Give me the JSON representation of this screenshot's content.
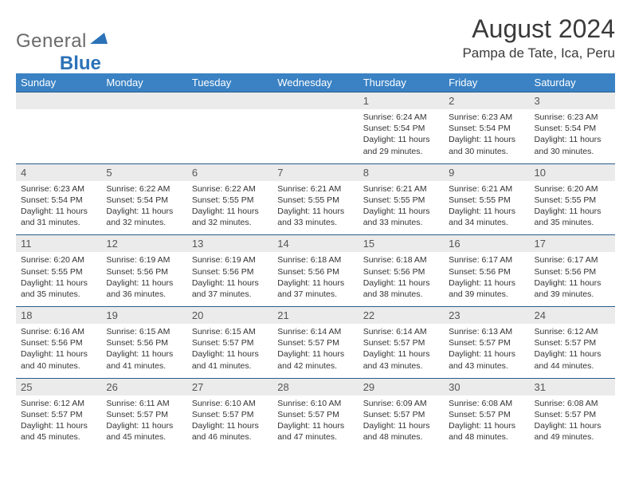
{
  "logo": {
    "text1": "General",
    "text2": "Blue"
  },
  "title": "August 2024",
  "location": "Pampa de Tate, Ica, Peru",
  "colors": {
    "header_bg": "#3a82c4",
    "header_text": "#ffffff",
    "daynum_bg": "#ebebeb",
    "row_divider": "#2a5d8a",
    "logo_gray": "#6a6a6a",
    "logo_blue": "#2c72b8"
  },
  "day_headers": [
    "Sunday",
    "Monday",
    "Tuesday",
    "Wednesday",
    "Thursday",
    "Friday",
    "Saturday"
  ],
  "weeks": [
    {
      "nums": [
        "",
        "",
        "",
        "",
        "1",
        "2",
        "3"
      ],
      "cells": [
        "",
        "",
        "",
        "",
        "Sunrise: 6:24 AM\nSunset: 5:54 PM\nDaylight: 11 hours and 29 minutes.",
        "Sunrise: 6:23 AM\nSunset: 5:54 PM\nDaylight: 11 hours and 30 minutes.",
        "Sunrise: 6:23 AM\nSunset: 5:54 PM\nDaylight: 11 hours and 30 minutes."
      ]
    },
    {
      "nums": [
        "4",
        "5",
        "6",
        "7",
        "8",
        "9",
        "10"
      ],
      "cells": [
        "Sunrise: 6:23 AM\nSunset: 5:54 PM\nDaylight: 11 hours and 31 minutes.",
        "Sunrise: 6:22 AM\nSunset: 5:54 PM\nDaylight: 11 hours and 32 minutes.",
        "Sunrise: 6:22 AM\nSunset: 5:55 PM\nDaylight: 11 hours and 32 minutes.",
        "Sunrise: 6:21 AM\nSunset: 5:55 PM\nDaylight: 11 hours and 33 minutes.",
        "Sunrise: 6:21 AM\nSunset: 5:55 PM\nDaylight: 11 hours and 33 minutes.",
        "Sunrise: 6:21 AM\nSunset: 5:55 PM\nDaylight: 11 hours and 34 minutes.",
        "Sunrise: 6:20 AM\nSunset: 5:55 PM\nDaylight: 11 hours and 35 minutes."
      ]
    },
    {
      "nums": [
        "11",
        "12",
        "13",
        "14",
        "15",
        "16",
        "17"
      ],
      "cells": [
        "Sunrise: 6:20 AM\nSunset: 5:55 PM\nDaylight: 11 hours and 35 minutes.",
        "Sunrise: 6:19 AM\nSunset: 5:56 PM\nDaylight: 11 hours and 36 minutes.",
        "Sunrise: 6:19 AM\nSunset: 5:56 PM\nDaylight: 11 hours and 37 minutes.",
        "Sunrise: 6:18 AM\nSunset: 5:56 PM\nDaylight: 11 hours and 37 minutes.",
        "Sunrise: 6:18 AM\nSunset: 5:56 PM\nDaylight: 11 hours and 38 minutes.",
        "Sunrise: 6:17 AM\nSunset: 5:56 PM\nDaylight: 11 hours and 39 minutes.",
        "Sunrise: 6:17 AM\nSunset: 5:56 PM\nDaylight: 11 hours and 39 minutes."
      ]
    },
    {
      "nums": [
        "18",
        "19",
        "20",
        "21",
        "22",
        "23",
        "24"
      ],
      "cells": [
        "Sunrise: 6:16 AM\nSunset: 5:56 PM\nDaylight: 11 hours and 40 minutes.",
        "Sunrise: 6:15 AM\nSunset: 5:56 PM\nDaylight: 11 hours and 41 minutes.",
        "Sunrise: 6:15 AM\nSunset: 5:57 PM\nDaylight: 11 hours and 41 minutes.",
        "Sunrise: 6:14 AM\nSunset: 5:57 PM\nDaylight: 11 hours and 42 minutes.",
        "Sunrise: 6:14 AM\nSunset: 5:57 PM\nDaylight: 11 hours and 43 minutes.",
        "Sunrise: 6:13 AM\nSunset: 5:57 PM\nDaylight: 11 hours and 43 minutes.",
        "Sunrise: 6:12 AM\nSunset: 5:57 PM\nDaylight: 11 hours and 44 minutes."
      ]
    },
    {
      "nums": [
        "25",
        "26",
        "27",
        "28",
        "29",
        "30",
        "31"
      ],
      "cells": [
        "Sunrise: 6:12 AM\nSunset: 5:57 PM\nDaylight: 11 hours and 45 minutes.",
        "Sunrise: 6:11 AM\nSunset: 5:57 PM\nDaylight: 11 hours and 45 minutes.",
        "Sunrise: 6:10 AM\nSunset: 5:57 PM\nDaylight: 11 hours and 46 minutes.",
        "Sunrise: 6:10 AM\nSunset: 5:57 PM\nDaylight: 11 hours and 47 minutes.",
        "Sunrise: 6:09 AM\nSunset: 5:57 PM\nDaylight: 11 hours and 48 minutes.",
        "Sunrise: 6:08 AM\nSunset: 5:57 PM\nDaylight: 11 hours and 48 minutes.",
        "Sunrise: 6:08 AM\nSunset: 5:57 PM\nDaylight: 11 hours and 49 minutes."
      ]
    }
  ]
}
